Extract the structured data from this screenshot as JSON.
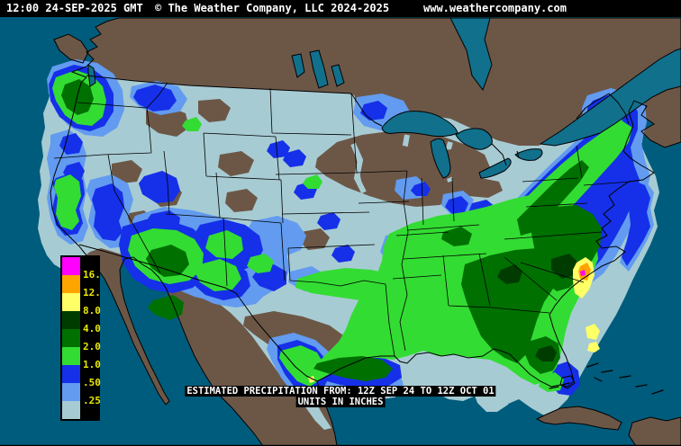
{
  "header": {
    "timestamp": "12:00 24-SEP-2025 GMT",
    "copyright": "© The Weather Company, LLC 2024-2025",
    "website": "www.weathercompany.com"
  },
  "map": {
    "caption_line1": "ESTIMATED PRECIPITATION FROM: 12Z SEP 24 TO 12Z OCT 01",
    "caption_line2": "UNITS IN INCHES",
    "region": "United States and surrounding areas",
    "content": "color-coded 7-day estimated precipitation totals"
  },
  "legend": {
    "title_implied": "precipitation scale",
    "labels": [
      "16.",
      "12.",
      "8.0",
      "4.0",
      "2.0",
      "1.0",
      ".50",
      ".25"
    ],
    "colors": [
      "#FF00FF",
      "#FFA500",
      "#FFFF66",
      "#003C00",
      "#007000",
      "#33DC33",
      "#1530E8",
      "#629BF0",
      "#A7CBD3"
    ],
    "label_color": "#E8E800",
    "background": "#000000"
  },
  "colors": {
    "ocean": "#005C7C",
    "land": "#6C5747",
    "lakes": "#11708C",
    "topbar_background": "#000000",
    "topbar_text": "#FFFFFF",
    "caption_background": "#000000",
    "caption_text": "#FFFFFF"
  }
}
